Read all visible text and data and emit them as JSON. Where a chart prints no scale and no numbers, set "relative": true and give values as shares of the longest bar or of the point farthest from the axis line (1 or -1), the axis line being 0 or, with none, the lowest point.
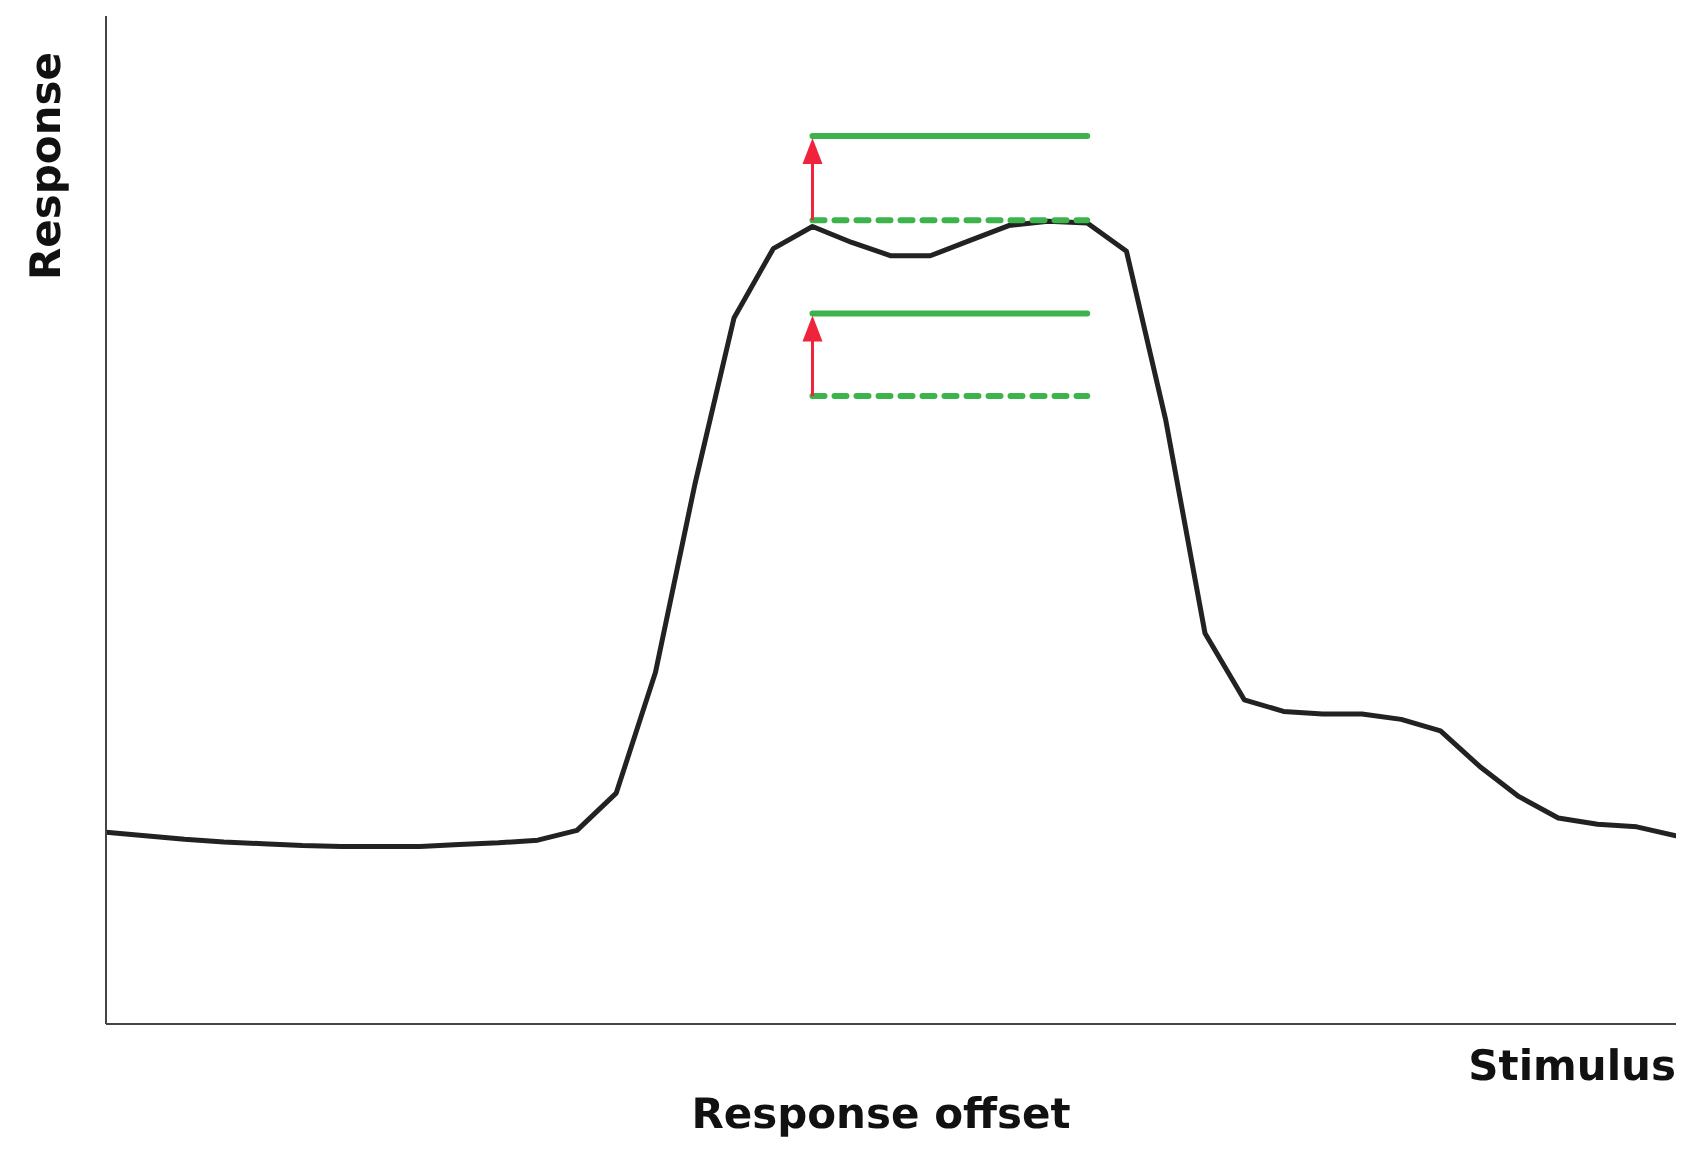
{
  "chart_data": {
    "type": "line",
    "relative": true,
    "ylabel": "Response",
    "xlabel": "Stimulus",
    "annotations": [
      "Response offset"
    ],
    "grid": false,
    "legend": false,
    "marker": "none",
    "categories": [
      null,
      null,
      null,
      null,
      null,
      null,
      null,
      null,
      null,
      null,
      null,
      null,
      null,
      null,
      null,
      null,
      null,
      null,
      null,
      null,
      null,
      null,
      null,
      null,
      null,
      null,
      null,
      null,
      null,
      null,
      null,
      null,
      null,
      null,
      null,
      null,
      null,
      null,
      null,
      null,
      null
    ],
    "series": [
      {
        "color": "#222222",
        "line_style": "solid",
        "values": [
          0.216,
          0.212,
          0.208,
          0.205,
          0.203,
          0.201,
          0.2,
          0.2,
          0.2,
          0.202,
          0.204,
          0.207,
          0.218,
          0.26,
          0.396,
          0.607,
          0.795,
          0.873,
          0.898,
          0.88,
          0.865,
          0.865,
          0.882,
          0.899,
          0.904,
          0.902,
          0.87,
          0.68,
          0.44,
          0.365,
          0.352,
          0.349,
          0.349,
          0.343,
          0.33,
          0.29,
          0.256,
          0.232,
          0.225,
          0.222,
          0.212
        ]
      },
      {
        "color": "#3cb44b",
        "line_style": "solid",
        "values": [
          null,
          null,
          null,
          null,
          null,
          null,
          null,
          null,
          null,
          null,
          null,
          null,
          null,
          null,
          null,
          null,
          null,
          null,
          1,
          1,
          1,
          1,
          1,
          1,
          1,
          1,
          null,
          null,
          null,
          null,
          null,
          null,
          null,
          null,
          null,
          null,
          null,
          null,
          null,
          null,
          null
        ]
      },
      {
        "color": "#3cb44b",
        "line_style": "dashed",
        "values": [
          null,
          null,
          null,
          null,
          null,
          null,
          null,
          null,
          null,
          null,
          null,
          null,
          null,
          null,
          null,
          null,
          null,
          null,
          0.905,
          0.905,
          0.905,
          0.905,
          0.905,
          0.905,
          0.905,
          0.905,
          null,
          null,
          null,
          null,
          null,
          null,
          null,
          null,
          null,
          null,
          null,
          null,
          null,
          null,
          null
        ]
      },
      {
        "color": "#3cb44b",
        "line_style": "solid",
        "values": [
          null,
          null,
          null,
          null,
          null,
          null,
          null,
          null,
          null,
          null,
          null,
          null,
          null,
          null,
          null,
          null,
          null,
          null,
          0.8,
          0.8,
          0.8,
          0.8,
          0.8,
          0.8,
          0.8,
          0.8,
          null,
          null,
          null,
          null,
          null,
          null,
          null,
          null,
          null,
          null,
          null,
          null,
          null,
          null,
          null
        ]
      },
      {
        "color": "#3cb44b",
        "line_style": "dashed",
        "values": [
          null,
          null,
          null,
          null,
          null,
          null,
          null,
          null,
          null,
          null,
          null,
          null,
          null,
          null,
          null,
          null,
          null,
          null,
          0.707,
          0.707,
          0.707,
          0.707,
          0.707,
          0.707,
          0.707,
          0.707,
          null,
          null,
          null,
          null,
          null,
          null,
          null,
          null,
          null,
          null,
          null,
          null,
          null,
          null,
          null
        ]
      }
    ]
  }
}
